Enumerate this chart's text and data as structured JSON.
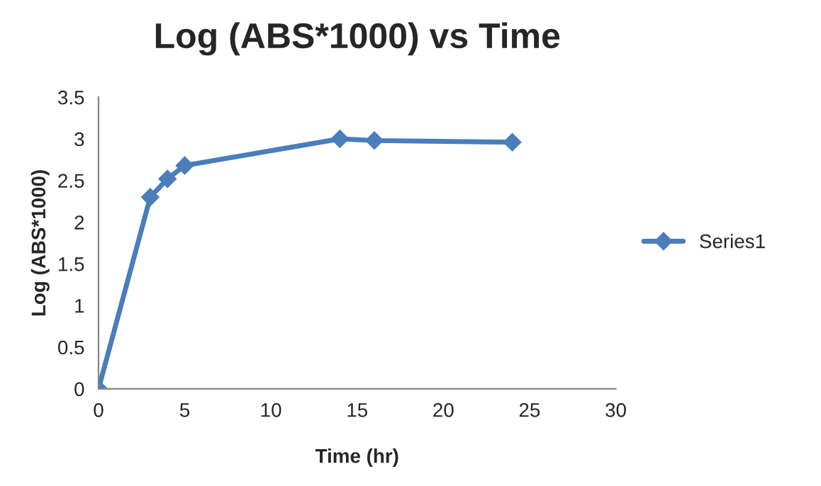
{
  "chart_data": {
    "type": "line",
    "title": "Log (ABS*1000) vs Time",
    "xlabel": "Time (hr)",
    "ylabel": "Log (ABS*1000)",
    "x": [
      0,
      3,
      4,
      5,
      14,
      16,
      24
    ],
    "series": [
      {
        "name": "Series1",
        "color": "#4a7ebb",
        "values": [
          0,
          2.3,
          2.52,
          2.68,
          3.0,
          2.98,
          2.96
        ]
      }
    ],
    "xlim": [
      0,
      30
    ],
    "xticks": [
      0,
      5,
      10,
      15,
      20,
      25,
      30
    ],
    "ylim": [
      0,
      3.5
    ],
    "yticks": [
      0,
      0.5,
      1,
      1.5,
      2,
      2.5,
      3,
      3.5
    ],
    "grid": false,
    "legend": "right",
    "marker": "diamond",
    "line_style": "solid"
  }
}
